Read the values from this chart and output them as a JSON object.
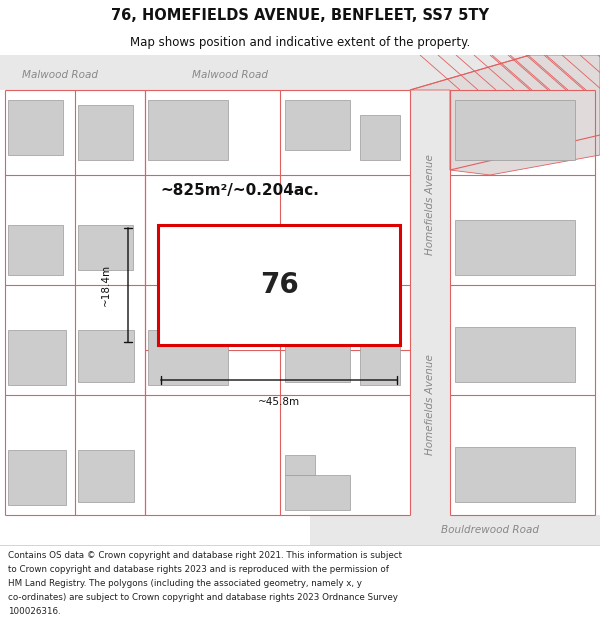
{
  "title": "76, HOMEFIELDS AVENUE, BENFLEET, SS7 5TY",
  "subtitle": "Map shows position and indicative extent of the property.",
  "footer_lines": [
    "Contains OS data © Crown copyright and database right 2021. This information is subject",
    "to Crown copyright and database rights 2023 and is reproduced with the permission of",
    "HM Land Registry. The polygons (including the associated geometry, namely x, y",
    "co-ordinates) are subject to Crown copyright and database rights 2023 Ordnance Survey",
    "100026316."
  ],
  "bg_color": "#ffffff",
  "map_bg": "#f7f5f5",
  "plot_line_color": "#e06060",
  "highlight_color": "#dd0000",
  "highlight_fill": "#ffffff",
  "building_fill": "#cccccc",
  "building_edge": "#999999",
  "area_text": "~825m²/~0.204ac.",
  "width_text": "~45.8m",
  "height_text": "~18.4m",
  "plot_number": "76"
}
